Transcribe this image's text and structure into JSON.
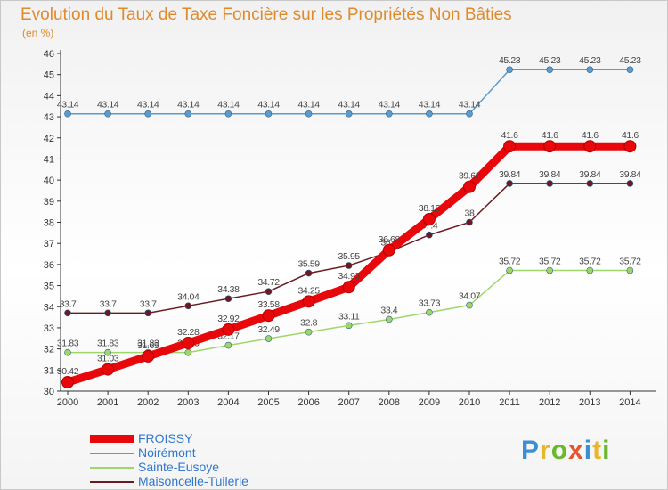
{
  "title": "Evolution du Taux de Taxe Foncière sur les Propriétés Non Bâties",
  "subtitle": "(en %)",
  "brand": {
    "text": "Proxiti",
    "colors": [
      "#3b8fd6",
      "#e8b52c",
      "#6ab82e",
      "#e8522c",
      "#3b8fd6",
      "#e8b52c",
      "#6ab82e"
    ]
  },
  "chart_data": {
    "type": "line",
    "x": [
      "2000",
      "2001",
      "2002",
      "2003",
      "2004",
      "2005",
      "2006",
      "2007",
      "2008",
      "2009",
      "2010",
      "2011",
      "2012",
      "2013",
      "2014"
    ],
    "ylim": [
      30,
      46
    ],
    "yticks": [
      "30",
      "31",
      "32",
      "33",
      "34",
      "35",
      "36",
      "37",
      "38",
      "39",
      "40",
      "41",
      "42",
      "43",
      "44",
      "45",
      "46"
    ],
    "grid": false,
    "legend_position": "bottom-left",
    "series": [
      {
        "name": "FROISSY",
        "color": "#e8070b",
        "width": 9,
        "values": [
          30.42,
          31.03,
          31.65,
          32.28,
          32.92,
          33.58,
          34.25,
          34.93,
          36.68,
          38.15,
          39.68,
          41.6,
          41.6,
          41.6,
          41.6
        ],
        "labels": [
          "30.42",
          "31.03",
          "31.65",
          "32.28",
          "32.92",
          "33.58",
          "34.25",
          "34.93",
          "36.68",
          "38.15",
          "39.68",
          "41.6",
          "41.6",
          "41.6",
          "41.6"
        ]
      },
      {
        "name": "Noirémont",
        "color": "#5a9bd0",
        "width": 1.5,
        "values": [
          43.14,
          43.14,
          43.14,
          43.14,
          43.14,
          43.14,
          43.14,
          43.14,
          43.14,
          43.14,
          43.14,
          45.23,
          45.23,
          45.23,
          45.23
        ],
        "labels": [
          "43.14",
          "43.14",
          "43.14",
          "43.14",
          "43.14",
          "43.14",
          "43.14",
          "43.14",
          "43.14",
          "43.14",
          "43.14",
          "45.23",
          "45.23",
          "45.23",
          "45.23"
        ]
      },
      {
        "name": "Sainte-Eusoye",
        "color": "#9fd66a",
        "width": 1.5,
        "values": [
          31.83,
          31.83,
          31.83,
          31.83,
          32.17,
          32.49,
          32.8,
          33.11,
          33.4,
          33.73,
          34.07,
          35.72,
          35.72,
          35.72,
          35.72
        ],
        "labels": [
          "31.83",
          "31.83",
          "31.83",
          "31.83",
          "32.17",
          "32.49",
          "32.8",
          "33.11",
          "33.4",
          "33.73",
          "34.07",
          "35.72",
          "35.72",
          "35.72",
          "35.72"
        ]
      },
      {
        "name": "Maisoncelle-Tuilerie",
        "color": "#6a1a20",
        "width": 1.5,
        "values": [
          33.7,
          33.7,
          33.7,
          34.04,
          34.38,
          34.72,
          35.59,
          35.95,
          36.6,
          37.4,
          38.0,
          39.84,
          39.84,
          39.84,
          39.84
        ],
        "labels": [
          "33.7",
          "33.7",
          "33.7",
          "34.04",
          "34.38",
          "34.72",
          "35.59",
          "35.95",
          "36.6",
          "37.4",
          "38",
          "39.84",
          "39.84",
          "39.84",
          "39.84"
        ]
      }
    ]
  }
}
